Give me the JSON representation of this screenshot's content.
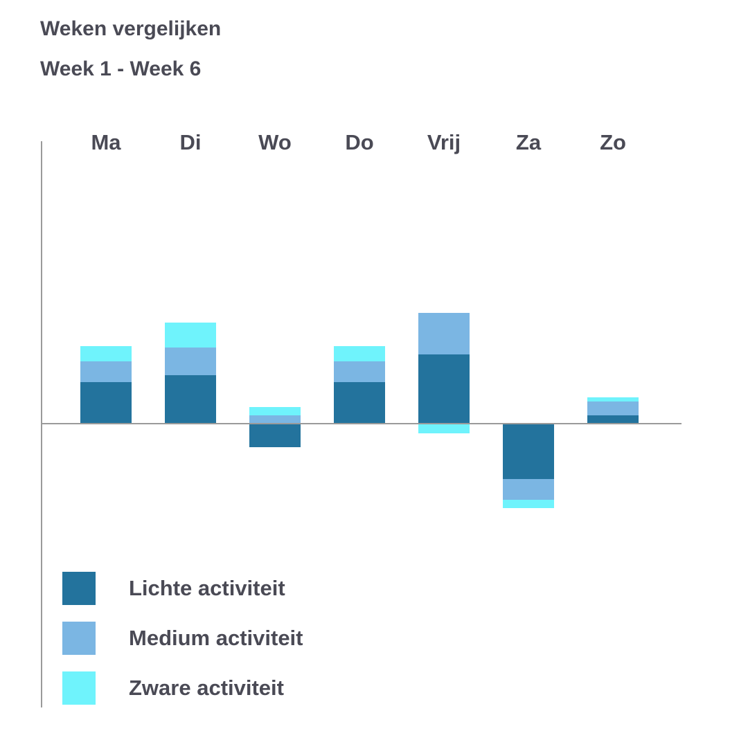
{
  "header": {
    "title": "Weken vergelijken",
    "subtitle": "Week 1 - Week 6"
  },
  "colors": {
    "light": "#23739d",
    "medium": "#7bb6e3",
    "heavy": "#6ff3fc",
    "axis": "#9a9a9a",
    "text": "#4a4a55"
  },
  "chart_data": {
    "type": "bar",
    "stacked": true,
    "title": "Weken vergelijken",
    "subtitle": "Week 1 - Week 6",
    "categories": [
      "Ma",
      "Di",
      "Wo",
      "Do",
      "Vrij",
      "Za",
      "Zo"
    ],
    "category_axis_position": "top",
    "baseline": 0,
    "ylim": [
      -13,
      13
    ],
    "grid": false,
    "legend_position": "bottom-left",
    "series": [
      {
        "name": "Lichte activiteit",
        "color": "#23739d",
        "values": [
          1.5,
          1.75,
          -0.85,
          1.5,
          2.5,
          -2.0,
          0.3
        ]
      },
      {
        "name": "Medium activiteit",
        "color": "#7bb6e3",
        "values": [
          0.75,
          1.0,
          0.3,
          0.75,
          1.5,
          -0.75,
          0.5
        ]
      },
      {
        "name": "Zware activiteit",
        "color": "#6ff3fc",
        "values": [
          0.55,
          0.9,
          0.3,
          0.55,
          -0.35,
          -0.3,
          0.15
        ]
      }
    ]
  }
}
